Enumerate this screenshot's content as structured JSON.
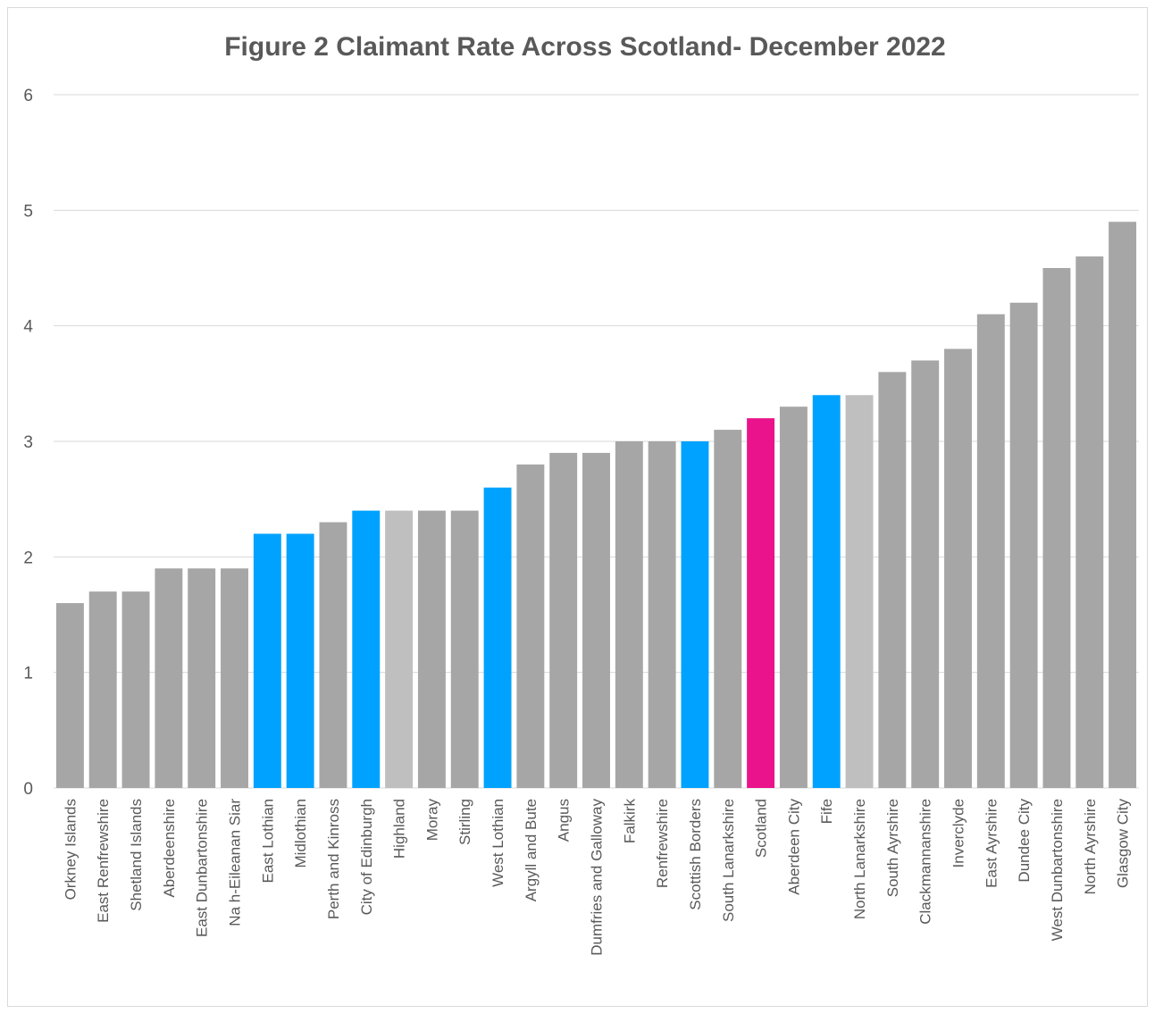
{
  "chart_data": {
    "type": "bar",
    "title": "Figure 2 Claimant Rate Across Scotland- December 2022",
    "xlabel": "",
    "ylabel": "",
    "ylim": [
      0,
      6
    ],
    "yticks": [
      "0",
      "1",
      "2",
      "3",
      "4",
      "5",
      "6"
    ],
    "grid": true,
    "legend": "none",
    "categories": [
      "Orkney Islands",
      "East Renfrewshire",
      "Shetland Islands",
      "Aberdeenshire",
      "East Dunbartonshire",
      "Na h-Eileanan Siar",
      "East Lothian",
      "Midlothian",
      "Perth and Kinross",
      "City of Edinburgh",
      "Highland",
      "Moray",
      "Stirling",
      "West Lothian",
      "Argyll and Bute",
      "Angus",
      "Dumfries and Galloway",
      "Falkirk",
      "Renfrewshire",
      "Scottish Borders",
      "South Lanarkshire",
      "Scotland",
      "Aberdeen City",
      "Fife",
      "North Lanarkshire",
      "South Ayrshire",
      "Clackmannanshire",
      "Inverclyde",
      "East Ayrshire",
      "Dundee City",
      "West Dunbartonshire",
      "North Ayrshire",
      "Glasgow City"
    ],
    "values": [
      1.6,
      1.7,
      1.7,
      1.9,
      1.9,
      1.9,
      2.2,
      2.2,
      2.3,
      2.4,
      2.4,
      2.4,
      2.4,
      2.6,
      2.8,
      2.9,
      2.9,
      3.0,
      3.0,
      3.0,
      3.1,
      3.2,
      3.3,
      3.4,
      3.4,
      3.6,
      3.7,
      3.8,
      4.1,
      4.2,
      4.5,
      4.6,
      4.9
    ],
    "colors": [
      "#a6a6a6",
      "#a6a6a6",
      "#a6a6a6",
      "#a6a6a6",
      "#a6a6a6",
      "#a6a6a6",
      "#00a2ff",
      "#00a2ff",
      "#a6a6a6",
      "#00a2ff",
      "#bfbfbf",
      "#a6a6a6",
      "#a6a6a6",
      "#00a2ff",
      "#a6a6a6",
      "#a6a6a6",
      "#a6a6a6",
      "#a6a6a6",
      "#a6a6a6",
      "#00a2ff",
      "#a6a6a6",
      "#ea138b",
      "#a6a6a6",
      "#00a2ff",
      "#bfbfbf",
      "#a6a6a6",
      "#a6a6a6",
      "#a6a6a6",
      "#a6a6a6",
      "#a6a6a6",
      "#a6a6a6",
      "#a6a6a6",
      "#a6a6a6"
    ],
    "gridline_color": "#d9d9d9",
    "text_color": "#595959"
  }
}
